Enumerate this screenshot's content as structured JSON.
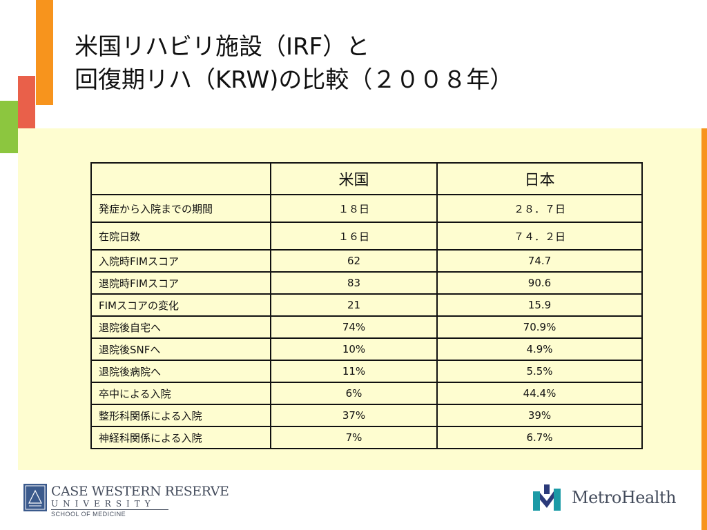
{
  "title": {
    "line1": "米国リハビリ施設（IRF）と",
    "line2": "回復期リハ（KRW)の比較（２００８年）"
  },
  "table": {
    "headers": [
      "",
      "米国",
      "日本"
    ],
    "rows": [
      [
        "発症から入院までの期間",
        "１８日",
        "２８．７日"
      ],
      [
        "在院日数",
        "１６日",
        "７４．２日"
      ],
      [
        "入院時FIMスコア",
        "62",
        "74.7"
      ],
      [
        "退院時FIMスコア",
        "83",
        "90.6"
      ],
      [
        "FIMスコアの変化",
        "21",
        "15.9"
      ],
      [
        "退院後自宅へ",
        "74%",
        "70.9%"
      ],
      [
        "退院後SNFへ",
        "10%",
        "4.9%"
      ],
      [
        "退院後病院へ",
        "11%",
        "5.5%"
      ],
      [
        "卒中による入院",
        "6%",
        "44.4%"
      ],
      [
        "整形科関係による入院",
        "37%",
        "39%"
      ],
      [
        "神経科関係による入院",
        "7%",
        "6.7%"
      ]
    ]
  },
  "footer": {
    "left_logo": {
      "name": "CASE WESTERN RESERVE",
      "university": "UNIVERSITY",
      "school": "SCHOOL OF MEDICINE"
    },
    "right_logo": {
      "name": "MetroHealth"
    }
  },
  "colors": {
    "orange": "#f7941d",
    "red": "#e9604a",
    "green": "#8cc63f",
    "purple": "#6b3fa0",
    "panel": "#fefdd0",
    "metro_teal": "#1b9aa6",
    "metro_navy": "#2b3a7a"
  }
}
